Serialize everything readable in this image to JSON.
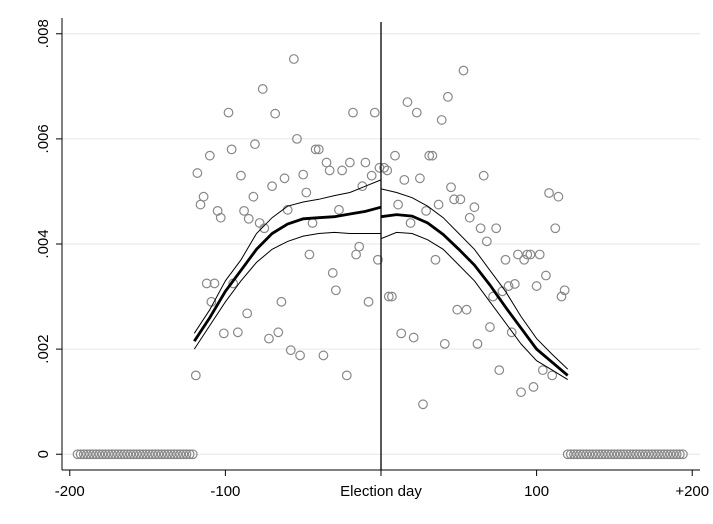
{
  "chart_data": {
    "type": "scatter",
    "title": "",
    "xlabel": "",
    "ylabel": "",
    "xlim": [
      -205,
      205
    ],
    "ylim": [
      -0.0003,
      0.0083
    ],
    "x_ticks": [
      {
        "value": -200,
        "label": "-200"
      },
      {
        "value": -100,
        "label": "-100"
      },
      {
        "value": 0,
        "label": "Election day"
      },
      {
        "value": 100,
        "label": "100"
      },
      {
        "value": 200,
        "label": "+200"
      }
    ],
    "y_ticks": [
      {
        "value": 0,
        "label": "0"
      },
      {
        "value": 0.002,
        "label": ".002"
      },
      {
        "value": 0.004,
        "label": ".004"
      },
      {
        "value": 0.006,
        "label": ".006"
      },
      {
        "value": 0.008,
        "label": ".008"
      }
    ],
    "grid": "horizontal",
    "vline_x": 0,
    "colors": {
      "points": "#888888",
      "fit": "#000000",
      "axis": "#000000",
      "grid": "#e6e6e6"
    },
    "points_zero": [
      -195,
      -193,
      -191,
      -189,
      -187,
      -185,
      -183,
      -181,
      -179,
      -177,
      -175,
      -173,
      -171,
      -169,
      -167,
      -165,
      -163,
      -161,
      -159,
      -157,
      -155,
      -153,
      -151,
      -149,
      -147,
      -145,
      -143,
      -141,
      -139,
      -137,
      -135,
      -133,
      -131,
      -129,
      -127,
      -125,
      -123,
      -121,
      120,
      122,
      124,
      126,
      128,
      130,
      132,
      134,
      136,
      138,
      140,
      142,
      144,
      146,
      148,
      150,
      152,
      154,
      156,
      158,
      160,
      162,
      164,
      166,
      168,
      170,
      172,
      174,
      176,
      178,
      180,
      182,
      184,
      186,
      188,
      190,
      192,
      194
    ],
    "points": [
      [
        -119,
        0.0015
      ],
      [
        -118,
        0.00535
      ],
      [
        -116,
        0.00475
      ],
      [
        -114,
        0.0049
      ],
      [
        -112,
        0.00325
      ],
      [
        -110,
        0.00568
      ],
      [
        -109,
        0.0029
      ],
      [
        -107,
        0.00325
      ],
      [
        -105,
        0.00463
      ],
      [
        -103,
        0.0045
      ],
      [
        -101,
        0.0023
      ],
      [
        -98,
        0.0065
      ],
      [
        -96,
        0.0058
      ],
      [
        -95,
        0.00325
      ],
      [
        -92,
        0.00232
      ],
      [
        -90,
        0.0053
      ],
      [
        -88,
        0.00463
      ],
      [
        -86,
        0.00268
      ],
      [
        -85,
        0.00448
      ],
      [
        -82,
        0.0049
      ],
      [
        -81,
        0.0059
      ],
      [
        -78,
        0.0044
      ],
      [
        -76,
        0.00695
      ],
      [
        -75,
        0.0043
      ],
      [
        -72,
        0.0022
      ],
      [
        -70,
        0.0051
      ],
      [
        -68,
        0.00648
      ],
      [
        -66,
        0.00232
      ],
      [
        -64,
        0.0029
      ],
      [
        -62,
        0.00525
      ],
      [
        -60,
        0.00465
      ],
      [
        -58,
        0.00198
      ],
      [
        -56,
        0.00752
      ],
      [
        -54,
        0.006
      ],
      [
        -52,
        0.00188
      ],
      [
        -50,
        0.00532
      ],
      [
        -48,
        0.00498
      ],
      [
        -46,
        0.0038
      ],
      [
        -44,
        0.0044
      ],
      [
        -42,
        0.0058
      ],
      [
        -40,
        0.0058
      ],
      [
        -37,
        0.00188
      ],
      [
        -35,
        0.00555
      ],
      [
        -33,
        0.0054
      ],
      [
        -31,
        0.00345
      ],
      [
        -29,
        0.00312
      ],
      [
        -27,
        0.00465
      ],
      [
        -25,
        0.0054
      ],
      [
        -22,
        0.0015
      ],
      [
        -20,
        0.00555
      ],
      [
        -18,
        0.0065
      ],
      [
        -16,
        0.0038
      ],
      [
        -14,
        0.00395
      ],
      [
        -12,
        0.0051
      ],
      [
        -10,
        0.00555
      ],
      [
        -8,
        0.0029
      ],
      [
        -6,
        0.0053
      ],
      [
        -4,
        0.0065
      ],
      [
        -2,
        0.0037
      ],
      [
        -1,
        0.00545
      ],
      [
        2,
        0.00545
      ],
      [
        4,
        0.0054
      ],
      [
        5,
        0.003
      ],
      [
        7,
        0.003
      ],
      [
        9,
        0.00568
      ],
      [
        11,
        0.00475
      ],
      [
        13,
        0.0023
      ],
      [
        15,
        0.00522
      ],
      [
        17,
        0.0067
      ],
      [
        19,
        0.0044
      ],
      [
        21,
        0.00222
      ],
      [
        23,
        0.0065
      ],
      [
        25,
        0.00525
      ],
      [
        27,
        0.00095
      ],
      [
        29,
        0.00463
      ],
      [
        31,
        0.00568
      ],
      [
        33,
        0.00568
      ],
      [
        35,
        0.0037
      ],
      [
        37,
        0.00475
      ],
      [
        39,
        0.00636
      ],
      [
        41,
        0.0021
      ],
      [
        43,
        0.0068
      ],
      [
        45,
        0.00508
      ],
      [
        47,
        0.00485
      ],
      [
        49,
        0.00275
      ],
      [
        51,
        0.00485
      ],
      [
        53,
        0.0073
      ],
      [
        55,
        0.00275
      ],
      [
        57,
        0.0045
      ],
      [
        60,
        0.0047
      ],
      [
        62,
        0.0021
      ],
      [
        64,
        0.0043
      ],
      [
        66,
        0.0053
      ],
      [
        68,
        0.00405
      ],
      [
        70,
        0.00242
      ],
      [
        72,
        0.003
      ],
      [
        74,
        0.0043
      ],
      [
        76,
        0.0016
      ],
      [
        78,
        0.0031
      ],
      [
        80,
        0.0037
      ],
      [
        82,
        0.0032
      ],
      [
        84,
        0.00232
      ],
      [
        86,
        0.00324
      ],
      [
        88,
        0.0038
      ],
      [
        90,
        0.00118
      ],
      [
        92,
        0.0037
      ],
      [
        94,
        0.0038
      ],
      [
        96,
        0.0038
      ],
      [
        98,
        0.00128
      ],
      [
        100,
        0.0032
      ],
      [
        102,
        0.0038
      ],
      [
        104,
        0.0016
      ],
      [
        106,
        0.0034
      ],
      [
        108,
        0.00497
      ],
      [
        110,
        0.0015
      ],
      [
        112,
        0.0043
      ],
      [
        114,
        0.0049
      ],
      [
        116,
        0.003
      ],
      [
        118,
        0.00312
      ]
    ],
    "fit_left": {
      "x": [
        -120,
        -110,
        -100,
        -90,
        -80,
        -70,
        -60,
        -50,
        -40,
        -30,
        -20,
        -10,
        0
      ],
      "y": [
        0.00215,
        0.0026,
        0.0031,
        0.0035,
        0.0039,
        0.0042,
        0.00438,
        0.00448,
        0.0045,
        0.00452,
        0.00457,
        0.00462,
        0.0047
      ],
      "upper": [
        0.0023,
        0.00275,
        0.0033,
        0.0037,
        0.0042,
        0.0045,
        0.00472,
        0.0048,
        0.00485,
        0.00492,
        0.00498,
        0.0051,
        0.00522
      ],
      "lower": [
        0.002,
        0.00245,
        0.0029,
        0.0033,
        0.00365,
        0.0039,
        0.00405,
        0.00415,
        0.0042,
        0.00422,
        0.0042,
        0.0042,
        0.0042
      ]
    },
    "fit_right": {
      "x": [
        0,
        10,
        20,
        30,
        40,
        50,
        60,
        70,
        80,
        90,
        100,
        110,
        120
      ],
      "y": [
        0.00452,
        0.00456,
        0.00453,
        0.0044,
        0.00418,
        0.0039,
        0.0036,
        0.00322,
        0.0028,
        0.0024,
        0.002,
        0.00175,
        0.0015
      ],
      "upper": [
        0.00505,
        0.00498,
        0.00488,
        0.00472,
        0.0045,
        0.0042,
        0.0039,
        0.0035,
        0.0031,
        0.00262,
        0.0022,
        0.0019,
        0.00162
      ],
      "lower": [
        0.0041,
        0.00422,
        0.0042,
        0.00408,
        0.0039,
        0.0036,
        0.0033,
        0.0029,
        0.0025,
        0.0021,
        0.00178,
        0.0016,
        0.00142
      ]
    }
  }
}
